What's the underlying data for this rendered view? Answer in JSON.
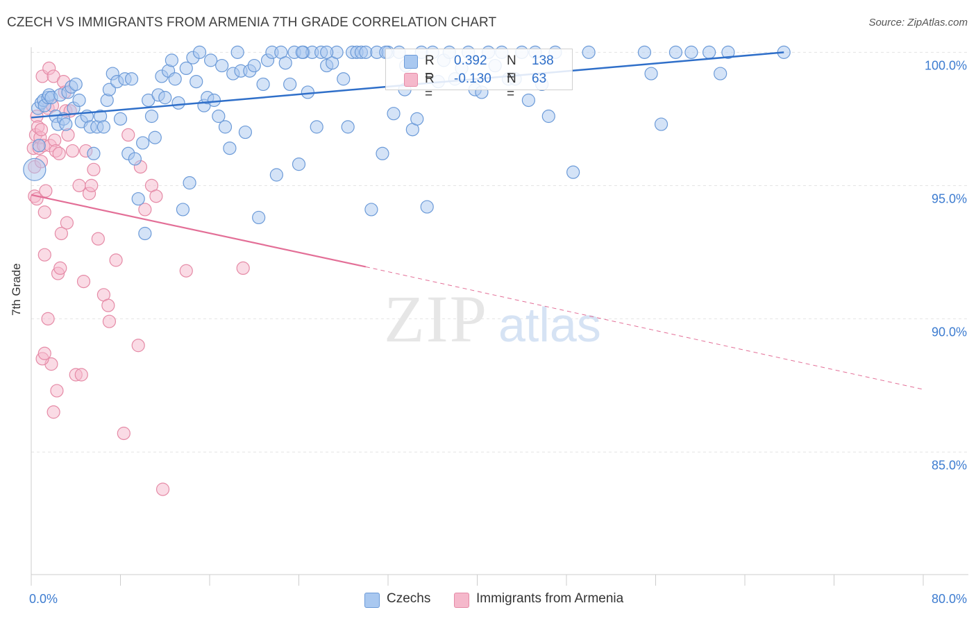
{
  "header": {
    "title": "CZECH VS IMMIGRANTS FROM ARMENIA 7TH GRADE CORRELATION CHART",
    "source": "Source: ZipAtlas.com"
  },
  "watermark": {
    "zip": "ZIP",
    "atlas": "atlas"
  },
  "legend_top": {
    "rows": [
      {
        "r_label": "R =",
        "r_value": "0.392",
        "n_label": "N =",
        "n_value": "138"
      },
      {
        "r_label": "R =",
        "r_value": "-0.130",
        "n_label": "N =",
        "n_value": "63"
      }
    ]
  },
  "legend_bottom": {
    "items": [
      "Czechs",
      "Immigrants from Armenia"
    ]
  },
  "colors": {
    "czech_fill": "#a9c8f0",
    "czech_stroke": "#6b9ad8",
    "czech_line": "#2f6fc9",
    "armenia_fill": "#f5b8cb",
    "armenia_stroke": "#e58aa6",
    "armenia_line": "#e36f97",
    "tick_label": "#3d7cd0",
    "grid": "#e3e3e3"
  },
  "chart_data": {
    "type": "scatter",
    "title": "CZECH VS IMMIGRANTS FROM ARMENIA 7TH GRADE CORRELATION CHART",
    "xlabel": "",
    "ylabel": "7th Grade",
    "xlim": [
      0,
      80
    ],
    "ylim": [
      80.4,
      100.4
    ],
    "x_ticks": [
      "0.0%",
      "80.0%"
    ],
    "y_ticks": [
      {
        "value": 85,
        "label": "85.0%"
      },
      {
        "value": 90,
        "label": "90.0%"
      },
      {
        "value": 95,
        "label": "95.0%"
      },
      {
        "value": 100,
        "label": "100.0%"
      }
    ],
    "grid": true,
    "legend_position": "bottom-center",
    "series": [
      {
        "name": "Czechs",
        "r": 0.392,
        "n": 138,
        "trend": {
          "x0": 0,
          "y0": 97.55,
          "x1": 67.5,
          "y1": 100.0
        },
        "points": [
          [
            0.3,
            95.6
          ],
          [
            0.6,
            97.9
          ],
          [
            0.7,
            96.5
          ],
          [
            0.9,
            98.1
          ],
          [
            1.1,
            98.2
          ],
          [
            1.2,
            98.0
          ],
          [
            1.5,
            98.3
          ],
          [
            1.6,
            98.4
          ],
          [
            1.8,
            98.3
          ],
          [
            2.2,
            97.6
          ],
          [
            2.4,
            97.3
          ],
          [
            2.6,
            98.4
          ],
          [
            2.9,
            97.5
          ],
          [
            3.1,
            97.3
          ],
          [
            3.3,
            98.5
          ],
          [
            3.6,
            98.7
          ],
          [
            3.8,
            97.9
          ],
          [
            4.0,
            98.8
          ],
          [
            4.3,
            98.2
          ],
          [
            4.5,
            97.4
          ],
          [
            5.0,
            97.6
          ],
          [
            5.3,
            97.2
          ],
          [
            5.6,
            96.2
          ],
          [
            5.9,
            97.2
          ],
          [
            6.2,
            97.6
          ],
          [
            6.5,
            97.2
          ],
          [
            6.8,
            98.2
          ],
          [
            7.0,
            98.6
          ],
          [
            7.3,
            99.2
          ],
          [
            7.7,
            98.9
          ],
          [
            8.0,
            97.5
          ],
          [
            8.4,
            99.0
          ],
          [
            8.7,
            96.2
          ],
          [
            9.0,
            99.0
          ],
          [
            9.3,
            96.0
          ],
          [
            9.6,
            94.5
          ],
          [
            10.0,
            96.6
          ],
          [
            10.2,
            93.2
          ],
          [
            10.5,
            98.2
          ],
          [
            10.8,
            97.6
          ],
          [
            11.1,
            96.8
          ],
          [
            11.4,
            98.4
          ],
          [
            11.7,
            99.1
          ],
          [
            12.0,
            98.3
          ],
          [
            12.3,
            99.3
          ],
          [
            12.6,
            99.7
          ],
          [
            12.9,
            99.0
          ],
          [
            13.2,
            98.1
          ],
          [
            13.6,
            94.1
          ],
          [
            13.9,
            99.4
          ],
          [
            14.2,
            95.1
          ],
          [
            14.5,
            99.8
          ],
          [
            14.8,
            98.9
          ],
          [
            15.1,
            100.0
          ],
          [
            15.5,
            98.0
          ],
          [
            15.8,
            98.3
          ],
          [
            16.1,
            99.7
          ],
          [
            16.4,
            98.2
          ],
          [
            16.8,
            97.6
          ],
          [
            17.1,
            99.5
          ],
          [
            17.4,
            97.2
          ],
          [
            17.8,
            96.4
          ],
          [
            18.1,
            99.2
          ],
          [
            18.5,
            100.0
          ],
          [
            18.8,
            99.3
          ],
          [
            19.2,
            97.0
          ],
          [
            19.6,
            99.3
          ],
          [
            20.0,
            99.5
          ],
          [
            20.4,
            93.8
          ],
          [
            20.8,
            98.8
          ],
          [
            21.2,
            99.7
          ],
          [
            21.6,
            100.0
          ],
          [
            22.0,
            95.4
          ],
          [
            22.4,
            100.0
          ],
          [
            22.8,
            99.6
          ],
          [
            23.2,
            98.8
          ],
          [
            23.6,
            100.0
          ],
          [
            24.0,
            95.8
          ],
          [
            24.4,
            100.0
          ],
          [
            24.8,
            98.5
          ],
          [
            25.2,
            100.0
          ],
          [
            25.6,
            97.2
          ],
          [
            26.0,
            100.0
          ],
          [
            26.5,
            99.5
          ],
          [
            27.0,
            99.6
          ],
          [
            27.4,
            100.0
          ],
          [
            28.0,
            99.0
          ],
          [
            28.4,
            97.2
          ],
          [
            28.8,
            100.0
          ],
          [
            29.2,
            100.0
          ],
          [
            29.6,
            100.0
          ],
          [
            30.0,
            100.0
          ],
          [
            30.5,
            94.1
          ],
          [
            31.0,
            100.0
          ],
          [
            31.5,
            96.2
          ],
          [
            32.0,
            100.0
          ],
          [
            32.5,
            97.7
          ],
          [
            33.0,
            100.0
          ],
          [
            33.6,
            99.5
          ],
          [
            34.2,
            97.1
          ],
          [
            34.6,
            97.5
          ],
          [
            35.0,
            100.0
          ],
          [
            35.5,
            94.2
          ],
          [
            36.0,
            100.0
          ],
          [
            36.5,
            98.9
          ],
          [
            37.0,
            99.7
          ],
          [
            37.5,
            100.0
          ],
          [
            38.0,
            99.0
          ],
          [
            38.6,
            99.4
          ],
          [
            39.2,
            100.0
          ],
          [
            39.8,
            98.6
          ],
          [
            40.4,
            98.5
          ],
          [
            41.0,
            100.0
          ],
          [
            41.6,
            99.5
          ],
          [
            42.2,
            100.0
          ],
          [
            42.8,
            99.0
          ],
          [
            43.4,
            99.0
          ],
          [
            44.0,
            100.0
          ],
          [
            44.6,
            98.2
          ],
          [
            45.2,
            100.0
          ],
          [
            45.8,
            98.8
          ],
          [
            46.4,
            97.6
          ],
          [
            47.0,
            100.0
          ],
          [
            48.6,
            95.5
          ],
          [
            50.0,
            100.0
          ],
          [
            55.0,
            100.0
          ],
          [
            55.6,
            99.2
          ],
          [
            56.5,
            97.3
          ],
          [
            57.8,
            100.0
          ],
          [
            59.2,
            100.0
          ],
          [
            60.8,
            100.0
          ],
          [
            61.8,
            99.2
          ],
          [
            62.5,
            100.0
          ],
          [
            67.5,
            100.0
          ],
          [
            26.5,
            100.0
          ],
          [
            31.8,
            100.0
          ],
          [
            33.5,
            98.6
          ],
          [
            24.3,
            100.0
          ]
        ]
      },
      {
        "name": "Immigrants from Armenia",
        "r": -0.13,
        "n": 63,
        "trend": {
          "x0": 0,
          "y0": 94.65,
          "x1": 30.0,
          "y1": 91.95,
          "dashed_to_x": 80,
          "dashed_to_y": 87.35
        },
        "points": [
          [
            0.2,
            96.4
          ],
          [
            0.3,
            95.7
          ],
          [
            0.3,
            94.6
          ],
          [
            0.4,
            96.9
          ],
          [
            0.5,
            97.6
          ],
          [
            0.5,
            94.5
          ],
          [
            0.6,
            97.2
          ],
          [
            0.7,
            96.4
          ],
          [
            0.8,
            96.8
          ],
          [
            0.9,
            97.1
          ],
          [
            1.0,
            99.1
          ],
          [
            1.1,
            96.5
          ],
          [
            1.2,
            94.0
          ],
          [
            1.2,
            92.4
          ],
          [
            1.3,
            94.8
          ],
          [
            1.5,
            97.9
          ],
          [
            1.5,
            90.0
          ],
          [
            1.6,
            99.4
          ],
          [
            1.7,
            96.5
          ],
          [
            1.8,
            88.3
          ],
          [
            1.9,
            98.0
          ],
          [
            2.0,
            99.1
          ],
          [
            2.1,
            96.7
          ],
          [
            2.2,
            96.3
          ],
          [
            2.3,
            87.3
          ],
          [
            2.4,
            91.7
          ],
          [
            2.5,
            96.2
          ],
          [
            2.6,
            91.9
          ],
          [
            2.7,
            93.2
          ],
          [
            2.9,
            98.9
          ],
          [
            3.0,
            98.5
          ],
          [
            3.1,
            97.8
          ],
          [
            3.2,
            93.6
          ],
          [
            3.3,
            96.9
          ],
          [
            3.5,
            97.8
          ],
          [
            3.7,
            96.3
          ],
          [
            4.0,
            87.9
          ],
          [
            4.3,
            95.0
          ],
          [
            4.5,
            87.9
          ],
          [
            4.7,
            91.4
          ],
          [
            4.9,
            96.3
          ],
          [
            5.2,
            94.7
          ],
          [
            5.4,
            95.0
          ],
          [
            5.6,
            95.6
          ],
          [
            6.0,
            93.0
          ],
          [
            6.5,
            90.9
          ],
          [
            7.0,
            89.9
          ],
          [
            7.6,
            92.2
          ],
          [
            8.3,
            85.7
          ],
          [
            8.7,
            96.9
          ],
          [
            9.6,
            89.0
          ],
          [
            9.8,
            95.7
          ],
          [
            10.2,
            94.1
          ],
          [
            10.8,
            95.0
          ],
          [
            11.2,
            94.6
          ],
          [
            11.8,
            83.6
          ],
          [
            13.9,
            91.8
          ],
          [
            19.0,
            91.9
          ],
          [
            1.0,
            88.5
          ],
          [
            1.2,
            88.7
          ],
          [
            2.0,
            86.5
          ],
          [
            6.9,
            90.5
          ],
          [
            0.9,
            95.9
          ]
        ]
      }
    ]
  }
}
